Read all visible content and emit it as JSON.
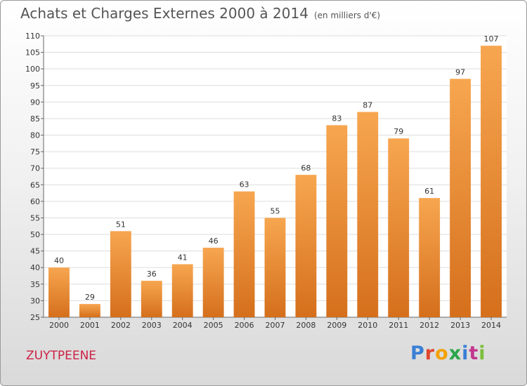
{
  "title": "Achats et Charges Externes 2000 à 2014",
  "subtitle": "(en milliers d'€)",
  "commune": "ZUYTPEENE",
  "logo": {
    "text": "Proxiti",
    "letter_colors": [
      "#3a7fd5",
      "#e0452e",
      "#f4a000",
      "#2aa64a",
      "#3a7fd5",
      "#c2378e",
      "#7cbf3a"
    ]
  },
  "colors": {
    "bar_top": "#f7a650",
    "bar_bottom": "#d56f1c",
    "grid": "#dddddd",
    "plot_bg": "#ffffff"
  },
  "chart_data": {
    "type": "bar",
    "categories": [
      "2000",
      "2001",
      "2002",
      "2003",
      "2004",
      "2005",
      "2006",
      "2007",
      "2008",
      "2009",
      "2010",
      "2011",
      "2012",
      "2013",
      "2014"
    ],
    "values": [
      40,
      29,
      51,
      36,
      41,
      46,
      63,
      55,
      68,
      83,
      87,
      79,
      61,
      97,
      107
    ],
    "title": "Achats et Charges Externes 2000 à 2014",
    "subtitle": "(en milliers d'€)",
    "ylim": [
      25,
      110
    ],
    "yticks": [
      25,
      30,
      35,
      40,
      45,
      50,
      55,
      60,
      65,
      70,
      75,
      80,
      85,
      90,
      95,
      100,
      105,
      110
    ],
    "grid": true,
    "legend": "none"
  }
}
